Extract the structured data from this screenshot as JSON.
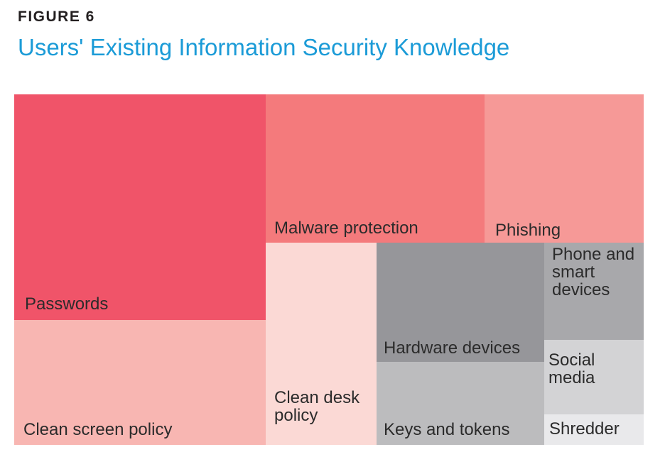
{
  "figure": {
    "label": "FIGURE 6",
    "title": "Users' Existing Information Security Knowledge"
  },
  "chart_data": {
    "type": "treemap",
    "items": [
      {
        "name": "Passwords",
        "lines": [
          "Passwords"
        ],
        "color": "#f05469"
      },
      {
        "name": "Clean screen policy",
        "lines": [
          "Clean screen policy"
        ],
        "color": "#f8b6b2"
      },
      {
        "name": "Malware protection",
        "lines": [
          "Malware protection"
        ],
        "color": "#f47a7c"
      },
      {
        "name": "Phishing",
        "lines": [
          "Phishing"
        ],
        "color": "#f69997"
      },
      {
        "name": "Clean desk policy",
        "lines": [
          "Clean desk",
          "policy"
        ],
        "color": "#fbd9d5"
      },
      {
        "name": "Hardware devices",
        "lines": [
          "Hardware devices"
        ],
        "color": "#96969a"
      },
      {
        "name": "Keys and tokens",
        "lines": [
          "Keys and tokens"
        ],
        "color": "#bcbcbe"
      },
      {
        "name": "Phone and smart devices",
        "lines": [
          "Phone and",
          "smart",
          "devices"
        ],
        "color": "#a8a8ab"
      },
      {
        "name": "Social media",
        "lines": [
          "Social",
          "media"
        ],
        "color": "#d3d3d5"
      },
      {
        "name": "Shredder",
        "lines": [
          "Shredder"
        ],
        "color": "#e9e9eb"
      }
    ]
  }
}
